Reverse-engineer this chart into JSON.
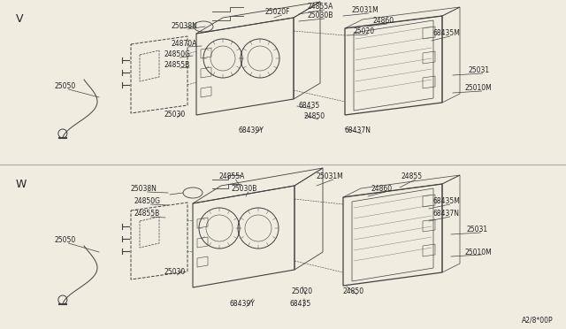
{
  "bg_color": "#f0ece0",
  "line_color": "#404040",
  "text_color": "#222222",
  "diagram_code": "A2/8*00P",
  "top_variant": "V",
  "bottom_variant": "W",
  "sep_color": "#aaaaaa",
  "font_size": 5.5
}
